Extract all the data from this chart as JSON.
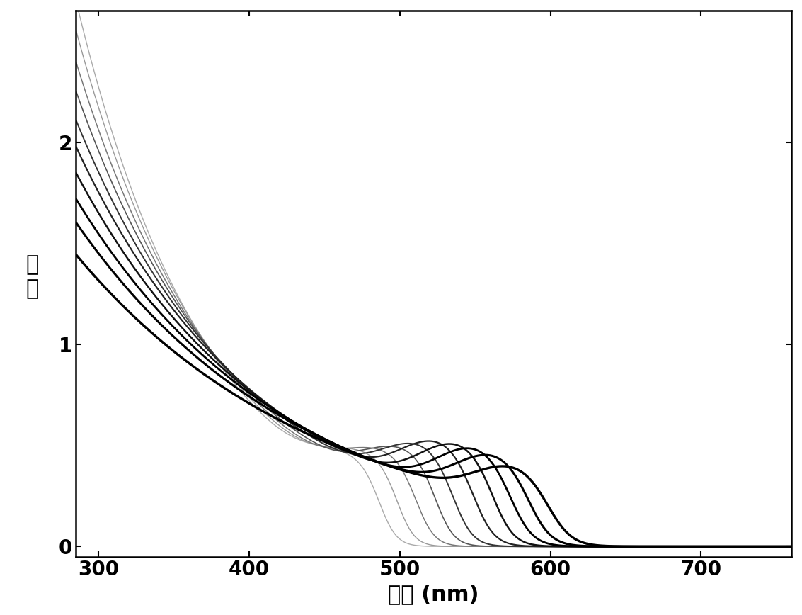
{
  "xlabel": "波长 (nm)",
  "ylabel": "吸\n收",
  "xlim": [
    285,
    760
  ],
  "ylim": [
    -0.05,
    2.65
  ],
  "xticks": [
    300,
    400,
    500,
    600,
    700
  ],
  "yticks": [
    0,
    1,
    2
  ],
  "background_color": "#ffffff",
  "num_curves": 10,
  "curve_colors": [
    "#aaaaaa",
    "#999999",
    "#777777",
    "#555555",
    "#333333",
    "#222222",
    "#111111",
    "#000000",
    "#000000",
    "#000000"
  ],
  "curve_linewidths": [
    1.0,
    1.0,
    1.1,
    1.2,
    1.4,
    1.6,
    1.8,
    2.0,
    2.2,
    2.4
  ],
  "peak_positions": [
    480,
    490,
    500,
    512,
    523,
    535,
    548,
    560,
    572,
    585
  ],
  "peak_heights": [
    0.12,
    0.14,
    0.16,
    0.18,
    0.2,
    0.22,
    0.22,
    0.21,
    0.19,
    0.15
  ],
  "max_absorptions": [
    2.55,
    2.42,
    2.28,
    2.15,
    2.02,
    1.9,
    1.78,
    1.66,
    1.55,
    1.4
  ],
  "decay_rates": [
    0.0115,
    0.0108,
    0.0101,
    0.0094,
    0.0087,
    0.0081,
    0.0076,
    0.0071,
    0.0067,
    0.0062
  ],
  "cutoff_wavelengths": [
    488,
    500,
    513,
    526,
    538,
    552,
    565,
    577,
    589,
    602
  ],
  "cutoff_sharpness": [
    12,
    12,
    13,
    13,
    14,
    15,
    15,
    16,
    16,
    17
  ],
  "xlabel_fontsize": 22,
  "ylabel_fontsize": 22,
  "tick_fontsize": 20
}
